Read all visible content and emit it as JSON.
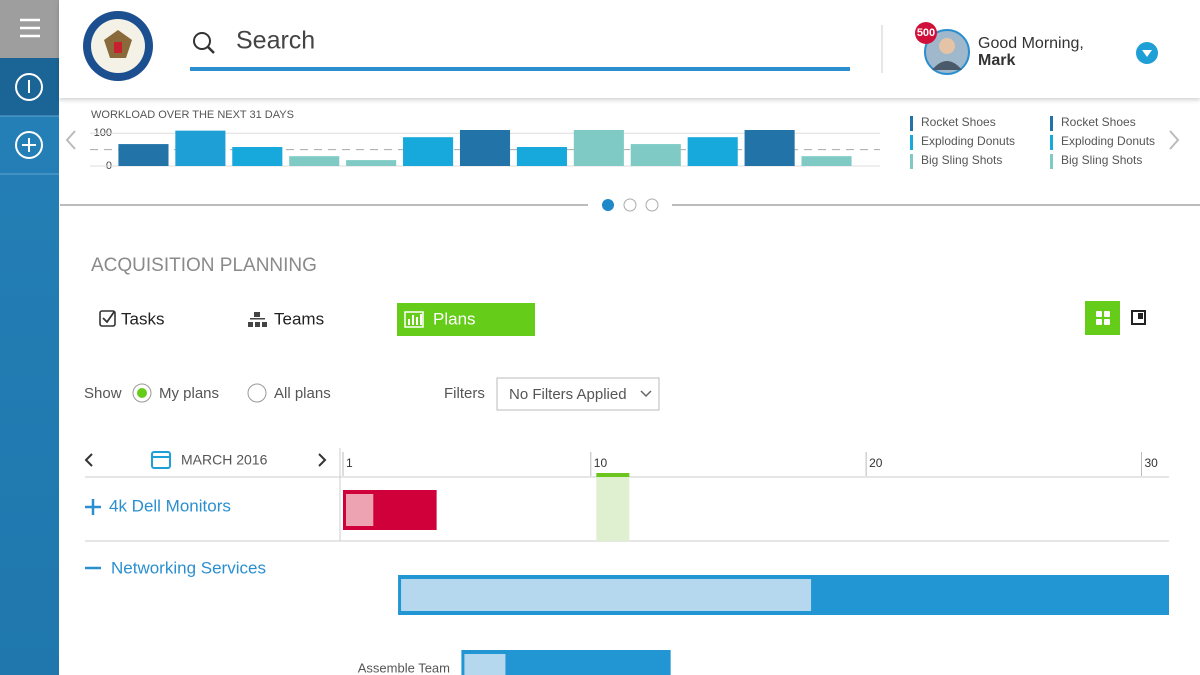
{
  "header": {
    "search": "Search",
    "notification_count": 500,
    "greeting": "Good Morning,",
    "user_name": "Mark"
  },
  "chart_data": {
    "type": "bar",
    "title": "WORKLOAD OVER THE NEXT 31 DAYS",
    "categories": [
      null,
      null,
      null,
      null,
      null,
      null,
      null,
      null,
      null,
      null,
      null,
      null,
      null
    ],
    "values": [
      67,
      108,
      58,
      30,
      18,
      88,
      110,
      58,
      110,
      67,
      88,
      110,
      30
    ],
    "colors": [
      "#2274a8",
      "#1e9fd6",
      "#17a8dc",
      "#7fcac4",
      "#7fcac4",
      "#17a8dc",
      "#2274a8",
      "#17a8dc",
      "#7fcac4",
      "#7fcac4",
      "#17a8dc",
      "#2274a8",
      "#7fcac4"
    ],
    "ylim": [
      0,
      110
    ],
    "yticks": [
      0,
      100
    ],
    "threshold": 50,
    "grid": true,
    "legend": [
      {
        "name": "Rocket Shoes",
        "color": "#2274a8"
      },
      {
        "name": "Exploding Donuts",
        "color": "#17a8dc"
      },
      {
        "name": "Big Sling Shots",
        "color": "#7fcac4"
      },
      {
        "name": "Rocket Shoes",
        "color": "#2274a8"
      },
      {
        "name": "Exploding Donuts",
        "color": "#17a8dc"
      },
      {
        "name": "Big Sling Shots",
        "color": "#7fcac4"
      }
    ]
  },
  "planning": {
    "title": "ACQUISITION PLANNING",
    "tabs": [
      "Tasks",
      "Teams",
      "Plans"
    ],
    "show_label": "Show",
    "options": [
      "My plans",
      "All plans"
    ],
    "filters_label": "Filters",
    "filter_value": "No Filters Applied",
    "month": "MARCH 2016",
    "gantt": {
      "xlim": [
        1,
        31
      ],
      "xticks": [
        1,
        10,
        20,
        30
      ],
      "today": [
        10.2,
        11.4
      ],
      "rows": [
        {
          "name": "4k Dell Monitors",
          "start": 1,
          "end": 4.4,
          "progress": 2.1,
          "color": "#d0003a",
          "progress_color": "#eea3b3"
        },
        {
          "name": "Networking Services",
          "start": 3,
          "end": 31,
          "progress": 18,
          "color": "#2196d3",
          "progress_color": "#b5d8ef"
        },
        {
          "name": "Assemble Team",
          "start": 5.3,
          "end": 12.9,
          "progress": 6.9,
          "color": "#2196d3",
          "progress_color": "#b5d8ef"
        }
      ]
    }
  }
}
